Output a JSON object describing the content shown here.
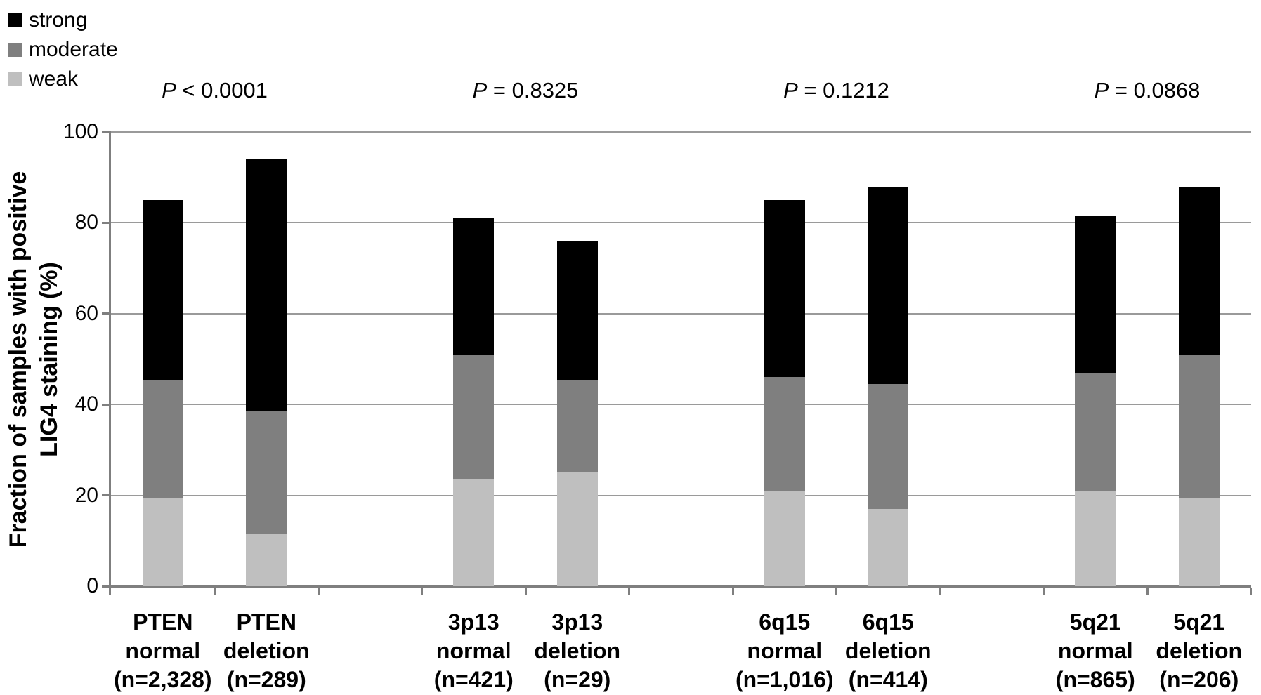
{
  "legend": {
    "items": [
      {
        "id": "strong",
        "label": "strong",
        "color": "#000000"
      },
      {
        "id": "moderate",
        "label": "moderate",
        "color": "#7f7f7f"
      },
      {
        "id": "weak",
        "label": "weak",
        "color": "#bfbfbf"
      }
    ]
  },
  "y_axis": {
    "title_line1": "Fraction of samples with positive",
    "title_line2": "LIG4 staining (%)",
    "tick_labels": [
      "0",
      "20",
      "40",
      "60",
      "80",
      "100"
    ]
  },
  "chart_data": {
    "type": "bar",
    "stacked": true,
    "ylim": [
      0,
      100
    ],
    "grid": true,
    "legend_position": "top-left",
    "ylabel": "Fraction of samples with positive LIG4 staining (%)",
    "series_keys": [
      "weak",
      "moderate",
      "strong"
    ],
    "series_colors": {
      "weak": "#bfbfbf",
      "moderate": "#7f7f7f",
      "strong": "#000000"
    },
    "groups": [
      {
        "p_value": {
          "prefix": "P",
          "rest": "< 0.0001"
        },
        "bars": [
          {
            "label_lines": [
              "PTEN",
              "normal",
              "(n=2,328)"
            ],
            "weak": 19.5,
            "moderate": 26.0,
            "strong": 39.5
          },
          {
            "label_lines": [
              "PTEN",
              "deletion",
              "(n=289)"
            ],
            "weak": 11.5,
            "moderate": 27.0,
            "strong": 55.5
          }
        ]
      },
      {
        "p_value": {
          "prefix": "P",
          "rest": "= 0.8325"
        },
        "bars": [
          {
            "label_lines": [
              "3p13",
              "normal",
              "(n=421)"
            ],
            "weak": 23.5,
            "moderate": 27.5,
            "strong": 30.0
          },
          {
            "label_lines": [
              "3p13",
              "deletion",
              "(n=29)"
            ],
            "weak": 25.0,
            "moderate": 20.5,
            "strong": 30.5
          }
        ]
      },
      {
        "p_value": {
          "prefix": "P",
          "rest": "= 0.1212"
        },
        "bars": [
          {
            "label_lines": [
              "6q15",
              "normal",
              "(n=1,016)"
            ],
            "weak": 21.0,
            "moderate": 25.0,
            "strong": 39.0
          },
          {
            "label_lines": [
              "6q15",
              "deletion",
              "(n=414)"
            ],
            "weak": 17.0,
            "moderate": 27.5,
            "strong": 43.5
          }
        ]
      },
      {
        "p_value": {
          "prefix": "P",
          "rest": "= 0.0868"
        },
        "bars": [
          {
            "label_lines": [
              "5q21",
              "normal",
              "(n=865)"
            ],
            "weak": 21.0,
            "moderate": 26.0,
            "strong": 34.5
          },
          {
            "label_lines": [
              "5q21",
              "deletion",
              "(n=206)"
            ],
            "weak": 19.5,
            "moderate": 31.5,
            "strong": 37.0
          }
        ]
      }
    ]
  }
}
